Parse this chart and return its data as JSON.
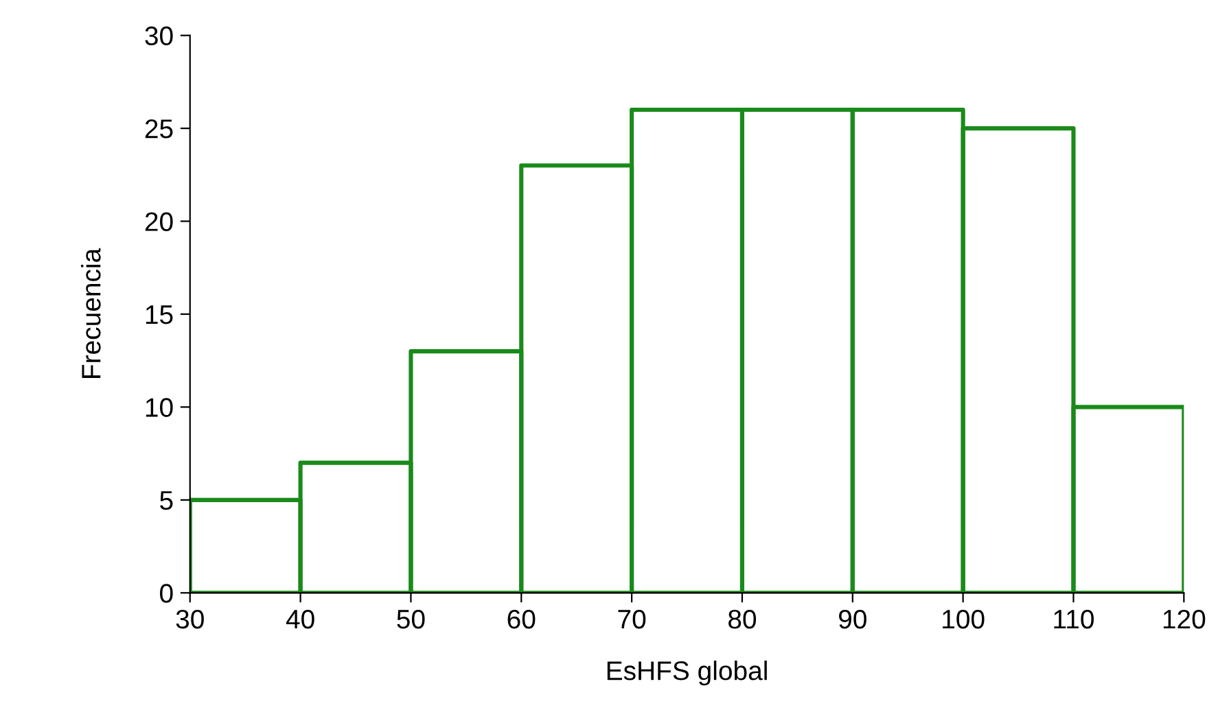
{
  "chart_data": {
    "type": "histogram",
    "xlabel": "EsHFS global",
    "ylabel": "Frecuencia",
    "bins": [
      30,
      40,
      50,
      60,
      70,
      80,
      90,
      100,
      110,
      120
    ],
    "values": [
      5,
      7,
      13,
      23,
      26,
      26,
      26,
      25,
      10
    ],
    "color": "#1a8a1a",
    "xlim": [
      30,
      120
    ],
    "xticks": [
      30,
      40,
      50,
      60,
      70,
      80,
      90,
      100,
      110,
      120
    ],
    "ylim": [
      0,
      30
    ],
    "yticks": [
      0,
      5,
      10,
      15,
      20,
      25,
      30
    ],
    "grid": false,
    "legend": false
  }
}
